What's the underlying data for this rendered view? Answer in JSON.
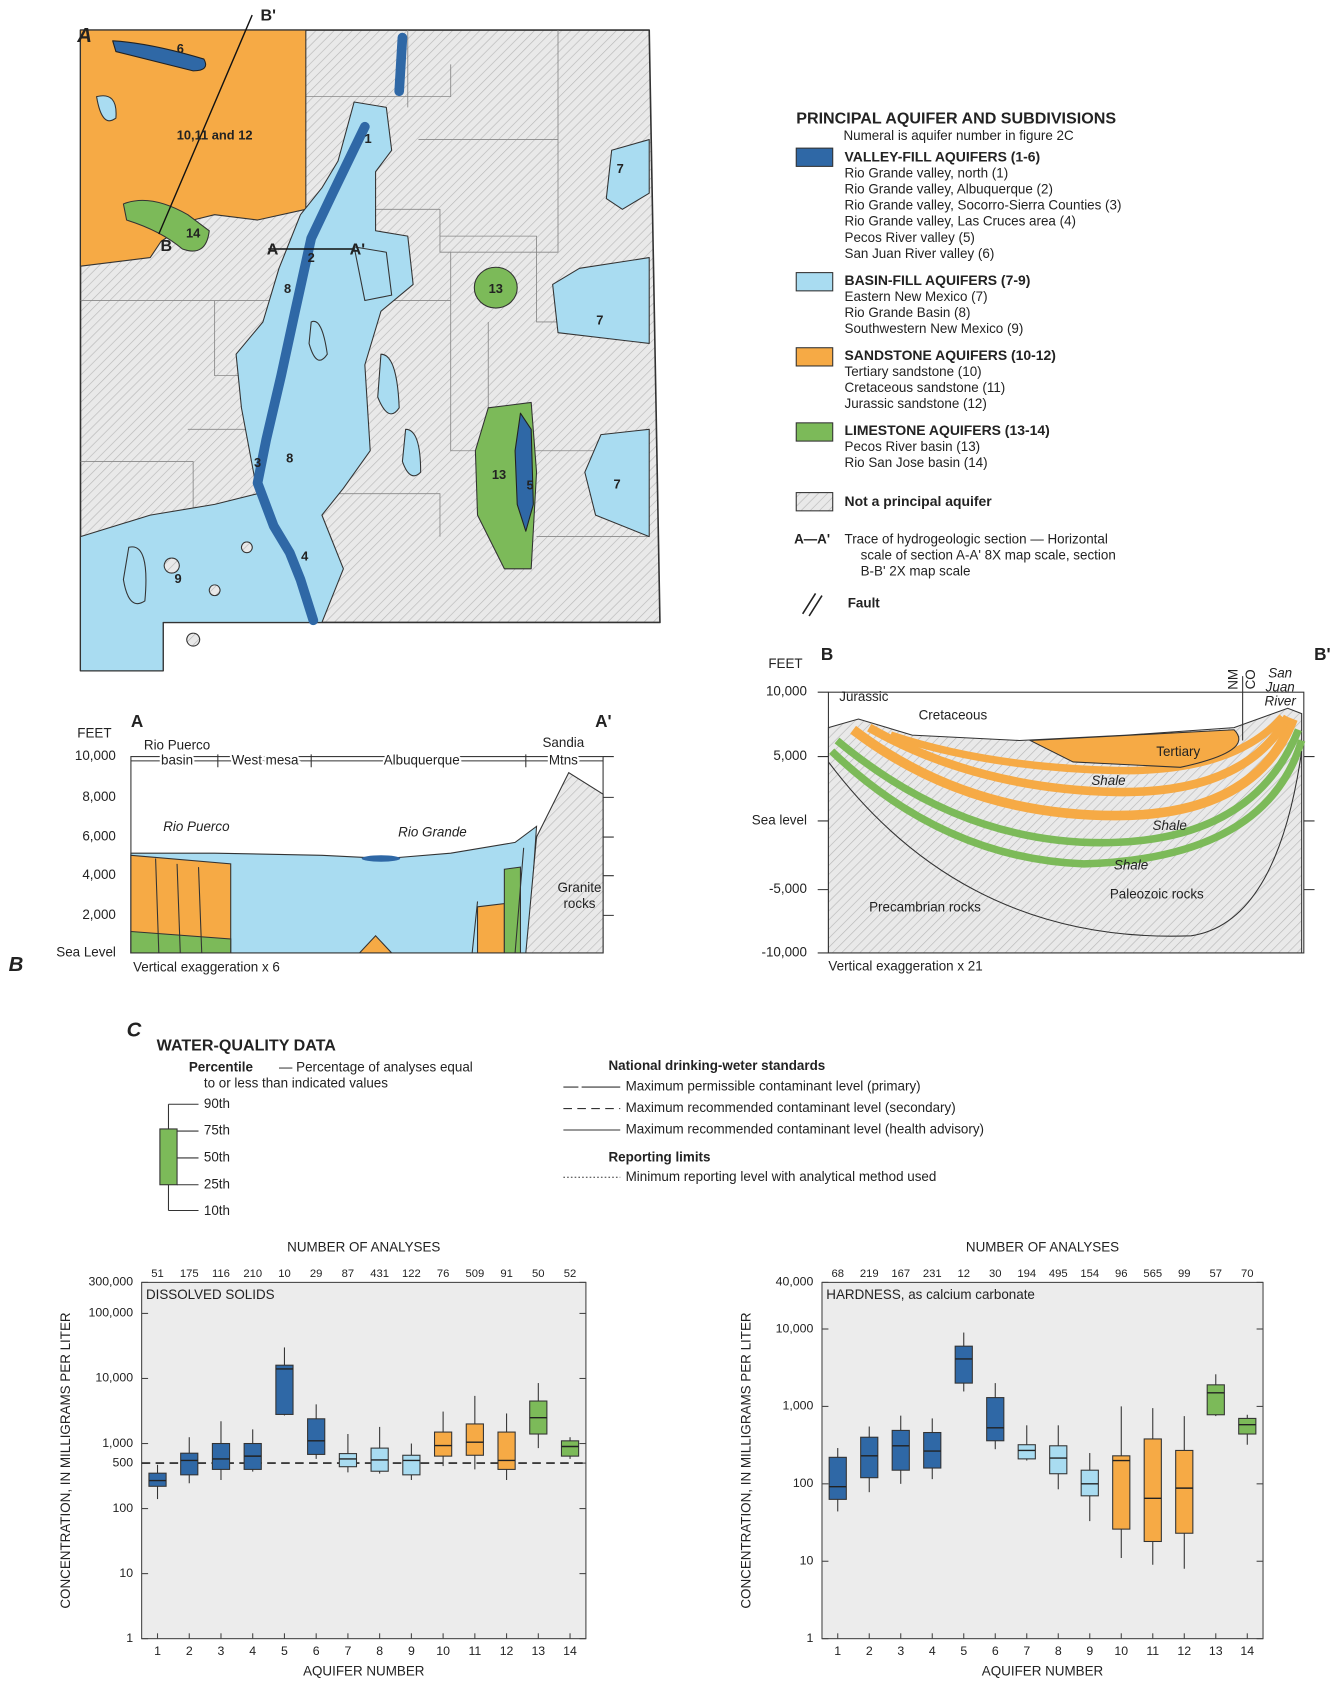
{
  "panel_labels": {
    "a": "A",
    "b": "B",
    "c": "C"
  },
  "map": {
    "labels": [
      "6",
      "B'",
      "10,11 and 12",
      "14",
      "B",
      "A",
      "A'",
      "1",
      "2",
      "8",
      "8",
      "3",
      "4",
      "5",
      "7",
      "7",
      "7",
      "9",
      "13",
      "13"
    ]
  },
  "legend": {
    "title": "PRINCIPAL AQUIFER AND SUBDIVISIONS",
    "note": "Numeral is aquifer number in figure 2C",
    "groups": [
      {
        "name": "VALLEY-FILL AQUIFERS (1-6)",
        "items": [
          "Rio Grande valley, north (1)",
          "Rio Grande valley, Albuquerque (2)",
          "Rio Grande valley, Socorro-Sierra Counties (3)",
          "Rio Grande valley, Las Cruces area (4)",
          "Pecos River valley (5)",
          "San Juan River valley (6)"
        ]
      },
      {
        "name": "BASIN-FILL AQUIFERS (7-9)",
        "items": [
          "Eastern New Mexico (7)",
          "Rio Grande Basin (8)",
          "Southwestern New Mexico (9)"
        ]
      },
      {
        "name": "SANDSTONE AQUIFERS (10-12)",
        "items": [
          "Tertiary sandstone (10)",
          "Cretaceous sandstone (11)",
          "Jurassic sandstone (12)"
        ]
      },
      {
        "name": "LIMESTONE AQUIFERS (13-14)",
        "items": [
          "Pecos River basin (13)",
          "Rio San Jose basin (14)"
        ]
      }
    ],
    "not_principal": "Not a principal aquifer",
    "trace_key": "A—A'",
    "trace_lines": [
      "Trace of hydrogeologic section — Horizontal",
      "scale of section A-A' 8X map scale, section",
      "B-B' 2X map scale"
    ],
    "fault": "Fault"
  },
  "section_aa": {
    "start": "A",
    "end": "A'",
    "units": "FEET",
    "y_labels": [
      "10,000",
      "8,000",
      "6,000",
      "4,000",
      "2,000",
      "Sea Level"
    ],
    "top_labels": [
      "Rio Puerco",
      "basin",
      "West mesa",
      "Albuquerque",
      "Sandia",
      "Mtns"
    ],
    "features": [
      "Rio Puerco",
      "Rio Grande",
      "Granite",
      "rocks"
    ],
    "note": "Vertical exaggeration x 6"
  },
  "section_bb": {
    "start": "B",
    "end": "B'",
    "units": "FEET",
    "y_labels": [
      "10,000",
      "5,000",
      "Sea level",
      "-5,000",
      "-10,000"
    ],
    "units_named": [
      "Jurassic",
      "Cretaceous",
      "Tertiary",
      "Shale",
      "Shale",
      "Shale",
      "Paleozoic rocks",
      "Precambrian rocks"
    ],
    "states": [
      "NM",
      "CO"
    ],
    "river": [
      "San",
      "Juan",
      "River"
    ],
    "note": "Vertical exaggeration x 21"
  },
  "wq_legend": {
    "title": "WATER-QUALITY DATA",
    "percentile": "Percentile",
    "percentile_note": [
      "— Percentage of analyses equal",
      "to or less than indicated values"
    ],
    "percentiles": [
      "90th",
      "75th",
      "50th",
      "25th",
      "10th"
    ],
    "standards_title": "National drinking-weter standards",
    "standards": [
      "Maximum permissible contaminant level (primary)",
      "Maximum recommended contaminant level (secondary)",
      "Maximum recommended contaminant level (health advisory)"
    ],
    "reporting_title": "Reporting limits",
    "reporting": "Minimum reporting level with analytical method used"
  },
  "chart_data": [
    {
      "type": "box",
      "title": "DISSOLVED SOLIDS",
      "top_label": "NUMBER OF ANALYSES",
      "x_label": "AQUIFER NUMBER",
      "y_label": "CONCENTRATION, IN MILLIGRAMS PER LITER",
      "log": true,
      "categories": [
        "1",
        "2",
        "3",
        "4",
        "5",
        "6",
        "7",
        "8",
        "9",
        "10",
        "11",
        "12",
        "13",
        "14"
      ],
      "n_analyses": [
        51,
        175,
        116,
        210,
        10,
        29,
        87,
        431,
        122,
        76,
        509,
        91,
        50,
        52
      ],
      "colors": [
        "#2f68a6",
        "#2f68a6",
        "#2f68a6",
        "#2f68a6",
        "#2f68a6",
        "#2f68a6",
        "#a9dcf1",
        "#a9dcf1",
        "#a9dcf1",
        "#f6aa45",
        "#f6aa45",
        "#f6aa45",
        "#7cba59",
        "#7cba59"
      ],
      "p10": [
        140,
        245,
        275,
        370,
        2700,
        580,
        360,
        345,
        275,
        450,
        400,
        275,
        850,
        580
      ],
      "p25": [
        220,
        330,
        400,
        400,
        2800,
        680,
        440,
        375,
        330,
        640,
        660,
        400,
        1400,
        640
      ],
      "median": [
        270,
        550,
        580,
        640,
        14000,
        1100,
        580,
        560,
        550,
        930,
        1050,
        550,
        2500,
        900
      ],
      "p75": [
        350,
        710,
        1000,
        1000,
        16000,
        2400,
        700,
        850,
        660,
        1500,
        2000,
        1500,
        4500,
        1100
      ],
      "p90": [
        470,
        1250,
        2200,
        1650,
        30000,
        4000,
        1400,
        1800,
        1000,
        3100,
        5400,
        2900,
        8500,
        1250
      ],
      "reference_line": 500,
      "ylim": [
        1,
        300000
      ],
      "yticks": [
        1,
        10,
        100,
        500,
        {
          "value": 1000,
          "label": "1,000"
        },
        {
          "value": 10000,
          "label": "10,000"
        },
        {
          "value": 100000,
          "label": "100,000"
        },
        {
          "value": 300000,
          "label": "300,000"
        }
      ]
    },
    {
      "type": "box",
      "title": "HARDNESS, as calcium carbonate",
      "top_label": "NUMBER OF ANALYSES",
      "x_label": "AQUIFER NUMBER",
      "y_label": "CONCENTRATION, IN MILLIGRAMS PER LITER",
      "log": true,
      "categories": [
        "1",
        "2",
        "3",
        "4",
        "5",
        "6",
        "7",
        "8",
        "9",
        "10",
        "11",
        "12",
        "13",
        "14"
      ],
      "n_analyses": [
        68,
        219,
        167,
        231,
        12,
        30,
        194,
        495,
        154,
        96,
        565,
        99,
        57,
        70
      ],
      "colors": [
        "#2f68a6",
        "#2f68a6",
        "#2f68a6",
        "#2f68a6",
        "#2f68a6",
        "#2f68a6",
        "#a9dcf1",
        "#a9dcf1",
        "#a9dcf1",
        "#f6aa45",
        "#f6aa45",
        "#f6aa45",
        "#7cba59",
        "#7cba59"
      ],
      "p10": [
        44,
        78,
        100,
        115,
        1560,
        280,
        200,
        85,
        33,
        11,
        9,
        8,
        750,
        320
      ],
      "p25": [
        63,
        120,
        150,
        160,
        2000,
        360,
        210,
        135,
        70,
        26,
        18,
        23,
        780,
        440
      ],
      "median": [
        92,
        230,
        310,
        265,
        4100,
        530,
        270,
        215,
        100,
        200,
        65,
        88,
        1500,
        580
      ],
      "p75": [
        220,
        400,
        490,
        460,
        6000,
        1300,
        320,
        310,
        150,
        230,
        380,
        270,
        1900,
        700
      ],
      "p90": [
        290,
        550,
        760,
        700,
        9000,
        2000,
        570,
        570,
        250,
        1000,
        950,
        750,
        2600,
        780
      ],
      "ylim": [
        1,
        40000
      ],
      "yticks": [
        1,
        10,
        100,
        {
          "value": 1000,
          "label": "1,000"
        },
        {
          "value": 10000,
          "label": "10,000"
        },
        {
          "value": 40000,
          "label": "40,000"
        }
      ]
    }
  ]
}
